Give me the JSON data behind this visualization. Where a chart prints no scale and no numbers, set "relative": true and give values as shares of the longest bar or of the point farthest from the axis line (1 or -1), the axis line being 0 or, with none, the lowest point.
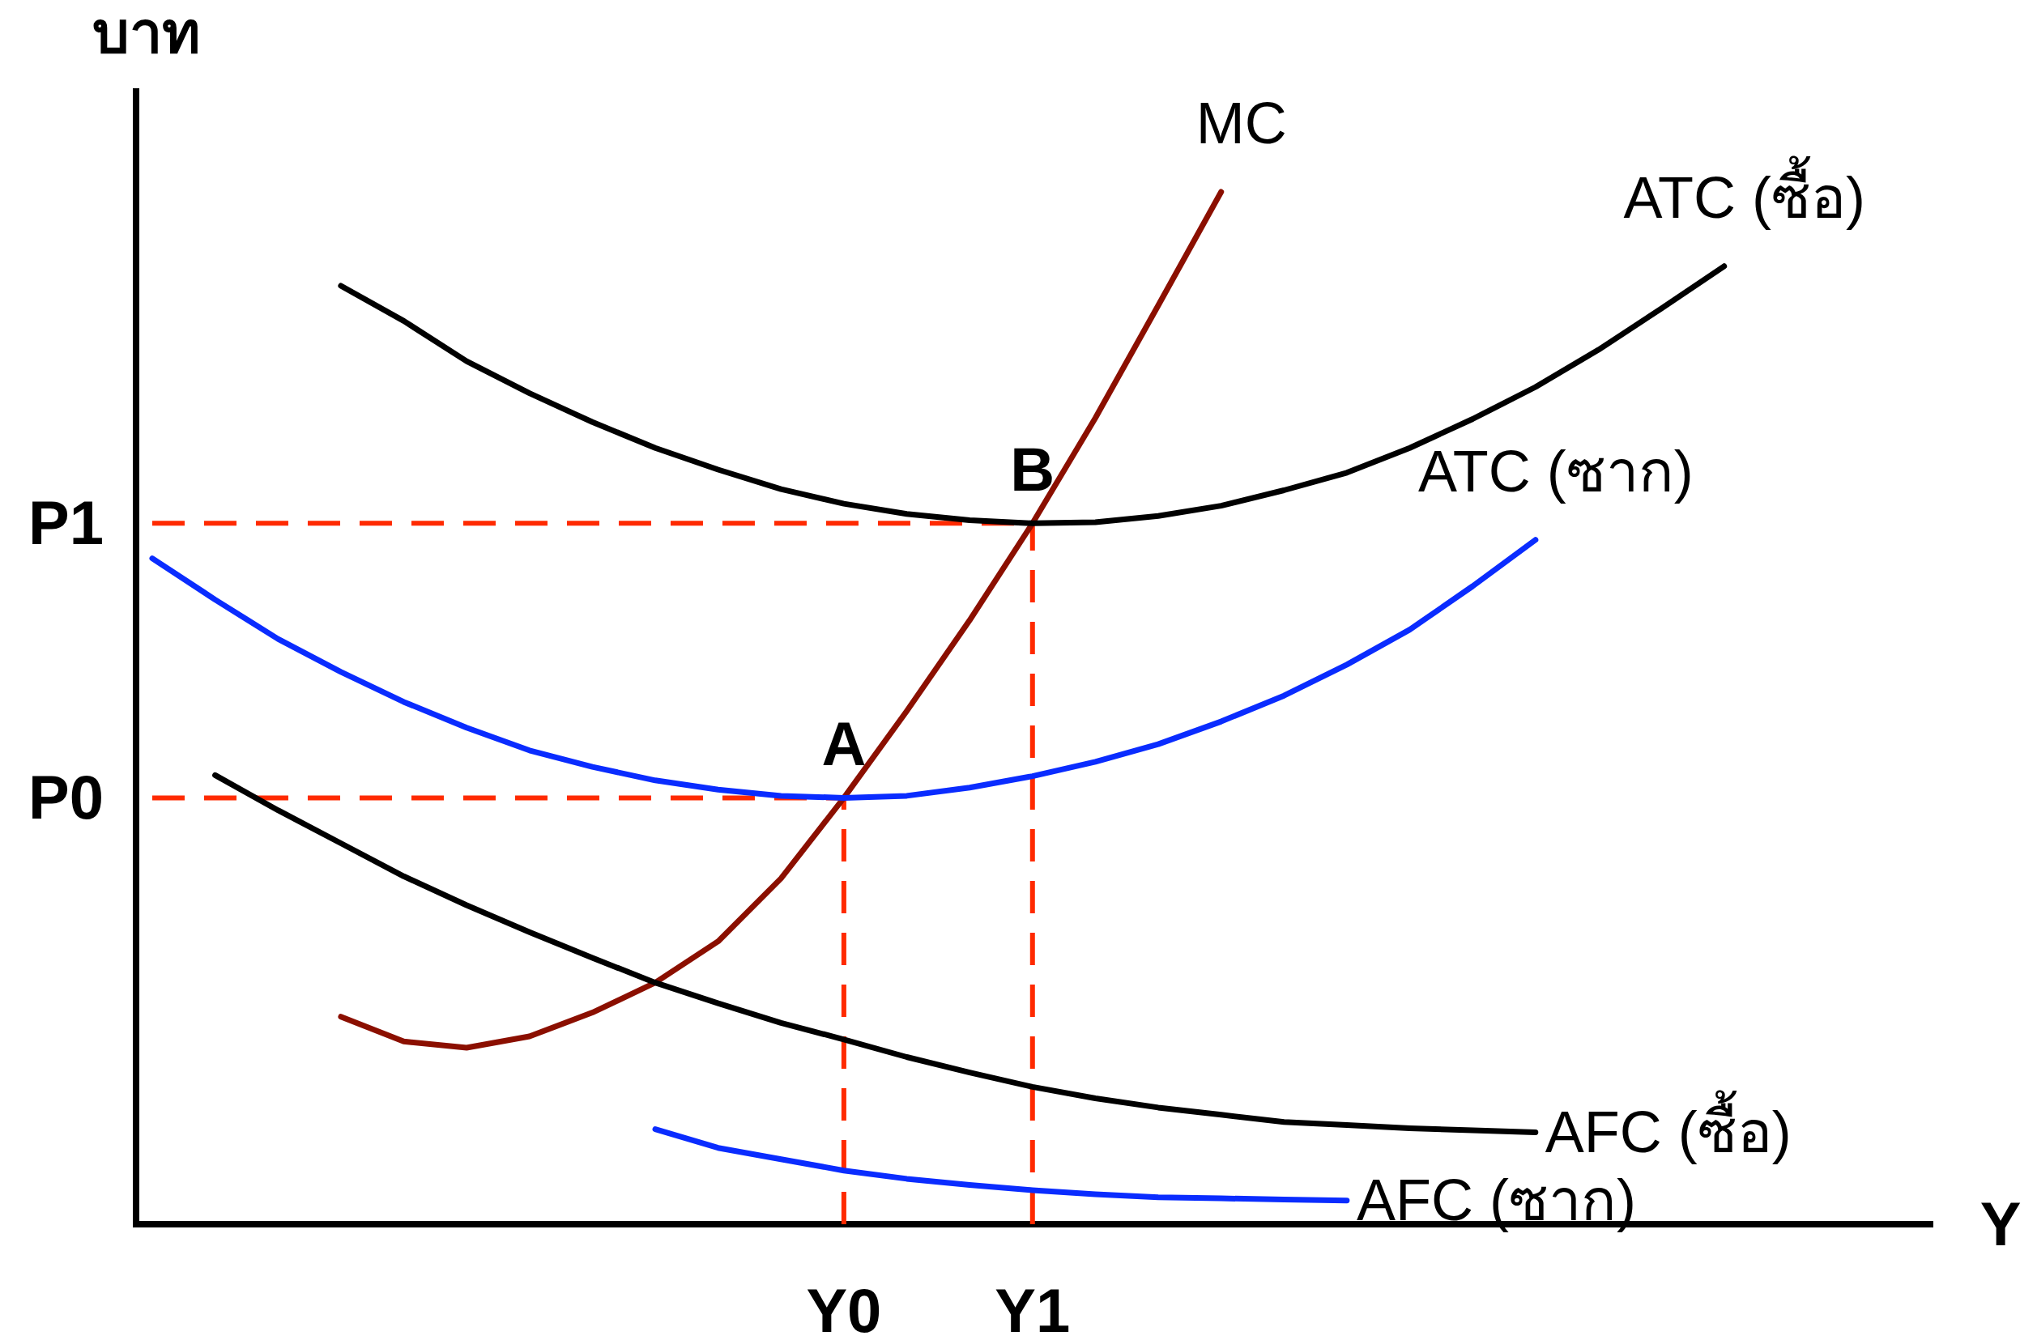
{
  "chart_data": {
    "type": "line",
    "relative": true,
    "xlabel": "Y",
    "ylabel": "บาท",
    "categories": [
      null,
      null,
      null,
      null,
      null,
      null,
      null,
      null,
      null,
      null,
      null,
      "Y0",
      null,
      null,
      "Y1",
      null,
      null,
      null,
      null,
      null,
      null,
      null,
      null,
      null,
      null,
      null
    ],
    "line_style": "solid",
    "marker": "none",
    "series": [
      {
        "name": "MC",
        "color": "#8b0f00",
        "values": [
          null,
          null,
          null,
          0.201,
          0.177,
          0.171,
          0.182,
          0.205,
          0.234,
          0.274,
          0.335,
          0.413,
          0.497,
          0.585,
          0.679,
          0.781,
          0.89,
          1,
          null,
          null,
          null,
          null,
          null,
          null,
          null,
          null
        ]
      },
      {
        "name": "ATC (ซื้อ)",
        "color": "#000000",
        "values": [
          null,
          null,
          null,
          0.909,
          0.875,
          0.836,
          0.805,
          0.777,
          0.752,
          0.731,
          0.712,
          0.698,
          0.688,
          0.682,
          0.679,
          0.68,
          0.686,
          0.696,
          0.711,
          0.728,
          0.752,
          0.78,
          0.811,
          0.847,
          0.887,
          0.928
        ]
      },
      {
        "name": "ATC (ซาก)",
        "color": "#0a2cff",
        "values": [
          0.645,
          0.605,
          0.567,
          0.535,
          0.506,
          0.481,
          0.459,
          0.443,
          0.43,
          0.421,
          0.415,
          0.413,
          0.415,
          0.423,
          0.434,
          0.448,
          0.465,
          0.487,
          0.512,
          0.542,
          0.576,
          0.618,
          0.663,
          null,
          null,
          null
        ]
      },
      {
        "name": "AFC (ซื้อ)",
        "color": "#000000",
        "values": [
          null,
          0.435,
          0.401,
          0.369,
          0.337,
          0.309,
          0.283,
          0.258,
          0.234,
          0.214,
          0.195,
          0.179,
          0.162,
          0.147,
          0.133,
          0.122,
          0.113,
          0.106,
          0.099,
          0.096,
          0.093,
          0.091,
          0.089,
          null,
          null,
          null
        ]
      },
      {
        "name": "AFC (ซาก)",
        "color": "#0a2cff",
        "values": [
          null,
          null,
          null,
          null,
          null,
          null,
          null,
          null,
          0.092,
          0.074,
          0.063,
          0.052,
          0.044,
          0.038,
          0.033,
          0.029,
          0.026,
          0.025,
          0.024,
          0.023,
          null,
          null,
          null,
          null,
          null,
          null
        ]
      }
    ],
    "ref_lines": [
      {
        "axis": "y",
        "value": 0.679,
        "label": "P1",
        "color": "#ff2a00",
        "line_style": "dashed"
      },
      {
        "axis": "x",
        "value": "Y1",
        "color": "#ff2a00",
        "line_style": "dashed"
      },
      {
        "axis": "y",
        "value": 0.413,
        "label": "P0",
        "color": "#ff2a00",
        "line_style": "dashed"
      },
      {
        "axis": "x",
        "value": "Y0",
        "color": "#ff2a00",
        "line_style": "dashed"
      }
    ],
    "annotations": [
      {
        "text": "A",
        "x": "Y0",
        "y": 0.413
      },
      {
        "text": "B",
        "x": "Y1",
        "y": 0.679
      }
    ]
  }
}
